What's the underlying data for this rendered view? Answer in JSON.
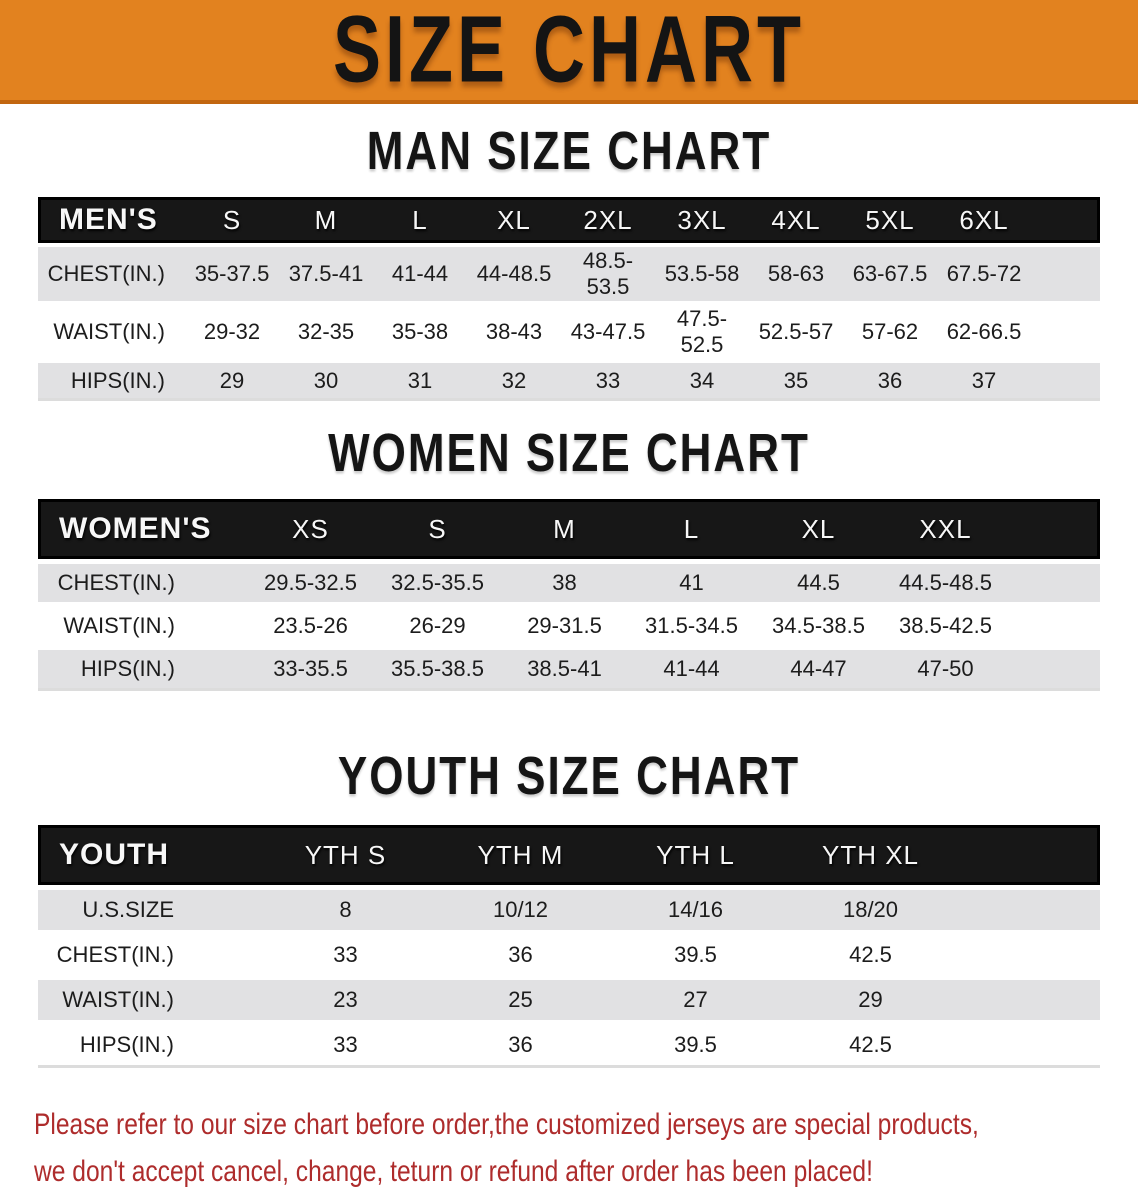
{
  "banner": {
    "title": "SIZE CHART"
  },
  "colors": {
    "banner_bg": "#E2821F",
    "banner_edge": "#C2660F",
    "header_bg": "#171717",
    "row_alt": "#E1E1E3",
    "text_red": "#AE2C2C"
  },
  "men_section": {
    "heading": "MAN SIZE CHART",
    "table": {
      "header": [
        "MEN'S",
        "S",
        "M",
        "L",
        "XL",
        "2XL",
        "3XL",
        "4XL",
        "5XL",
        "6XL"
      ],
      "rows": [
        [
          "CHEST(IN.)",
          "35-37.5",
          "37.5-41",
          "41-44",
          "44-48.5",
          "48.5-53.5",
          "53.5-58",
          "58-63",
          "63-67.5",
          "67.5-72"
        ],
        [
          "WAIST(IN.)",
          "29-32",
          "32-35",
          "35-38",
          "38-43",
          "43-47.5",
          "47.5-52.5",
          "52.5-57",
          "57-62",
          "62-66.5"
        ],
        [
          "HIPS(IN.)",
          "29",
          "30",
          "31",
          "32",
          "33",
          "34",
          "35",
          "36",
          "37"
        ]
      ]
    }
  },
  "women_section": {
    "heading": "WOMEN SIZE CHART",
    "table": {
      "header": [
        "WOMEN'S",
        "XS",
        "S",
        "M",
        "L",
        "XL",
        "XXL"
      ],
      "rows": [
        [
          "CHEST(IN.)",
          "29.5-32.5",
          "32.5-35.5",
          "38",
          "41",
          "44.5",
          "44.5-48.5"
        ],
        [
          "WAIST(IN.)",
          "23.5-26",
          "26-29",
          "29-31.5",
          "31.5-34.5",
          "34.5-38.5",
          "38.5-42.5"
        ],
        [
          "HIPS(IN.)",
          "33-35.5",
          "35.5-38.5",
          "38.5-41",
          "41-44",
          "44-47",
          "47-50"
        ]
      ]
    }
  },
  "youth_section": {
    "heading": "YOUTH SIZE CHART",
    "table": {
      "header": [
        "YOUTH",
        "YTH S",
        "YTH M",
        "YTH L",
        "YTH XL"
      ],
      "rows": [
        [
          "U.S.SIZE",
          "8",
          "10/12",
          "14/16",
          "18/20"
        ],
        [
          "CHEST(IN.)",
          "33",
          "36",
          "39.5",
          "42.5"
        ],
        [
          "WAIST(IN.)",
          "23",
          "25",
          "27",
          "29"
        ],
        [
          "HIPS(IN.)",
          "33",
          "36",
          "39.5",
          "42.5"
        ]
      ]
    }
  },
  "disclaimer": {
    "line1": "Please refer to our size chart before order,the customized jerseys are special products,",
    "line2": "we don't accept cancel, change, teturn or refund after order has been placed!"
  }
}
